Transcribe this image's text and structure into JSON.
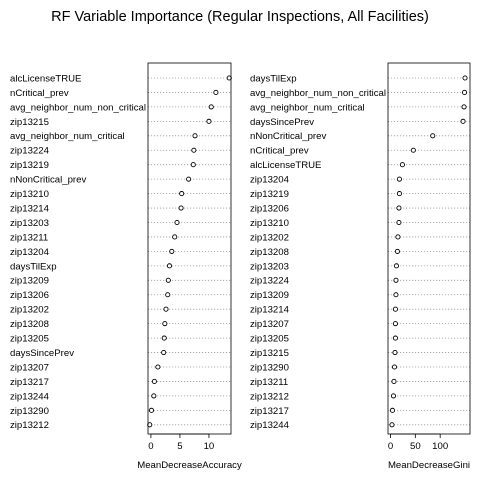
{
  "title": "RF Variable Importance (Regular Inspections, All Facilities)",
  "chart_data": [
    {
      "type": "scatter",
      "xlabel": "MeanDecreaseAccuracy",
      "xlim": [
        -0.5,
        13.8
      ],
      "xticks": [
        0,
        5,
        10
      ],
      "grid": "dotted horizontal",
      "categories": [
        "alcLicenseTRUE",
        "nCritical_prev",
        "avg_neighbor_num_non_critical",
        "zip13215",
        "avg_neighbor_num_critical",
        "zip13224",
        "zip13219",
        "nNonCritical_prev",
        "zip13210",
        "zip13214",
        "zip13203",
        "zip13211",
        "zip13204",
        "daysTilExp",
        "zip13209",
        "zip13206",
        "zip13202",
        "zip13208",
        "zip13205",
        "daysSincePrev",
        "zip13207",
        "zip13217",
        "zip13244",
        "zip13290",
        "zip13212"
      ],
      "values": [
        13.5,
        11.2,
        10.4,
        10.0,
        7.6,
        7.4,
        7.3,
        6.5,
        5.3,
        5.2,
        4.5,
        4.1,
        3.6,
        3.2,
        3.0,
        2.9,
        2.6,
        2.4,
        2.3,
        2.2,
        1.2,
        0.6,
        0.5,
        0.1,
        -0.2
      ]
    },
    {
      "type": "scatter",
      "xlabel": "MeanDecreaseGini",
      "xlim": [
        -5,
        160
      ],
      "xticks": [
        0,
        50,
        100
      ],
      "grid": "dotted horizontal",
      "categories": [
        "daysTilExp",
        "avg_neighbor_num_non_critical",
        "avg_neighbor_num_critical",
        "daysSincePrev",
        "nNonCritical_prev",
        "nCritical_prev",
        "alcLicenseTRUE",
        "zip13204",
        "zip13219",
        "zip13206",
        "zip13210",
        "zip13202",
        "zip13208",
        "zip13203",
        "zip13224",
        "zip13209",
        "zip13214",
        "zip13207",
        "zip13205",
        "zip13215",
        "zip13290",
        "zip13211",
        "zip13212",
        "zip13217",
        "zip13244"
      ],
      "values": [
        150,
        149,
        148,
        146,
        85,
        46,
        24,
        18,
        18,
        17,
        17,
        15,
        14,
        12,
        11,
        11,
        10,
        10,
        10,
        9,
        8,
        7,
        6,
        4,
        3
      ]
    }
  ]
}
